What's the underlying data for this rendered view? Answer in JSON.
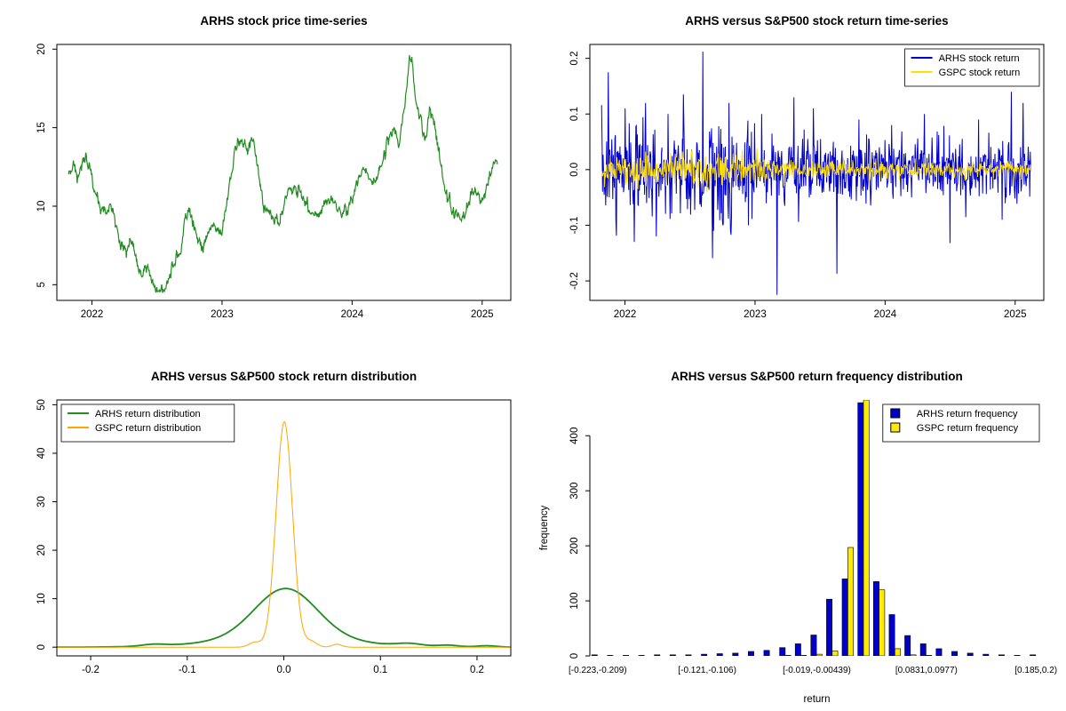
{
  "background": "#ffffff",
  "chart_data": [
    {
      "id": "arhs-price",
      "type": "line",
      "title": "ARHS stock price time-series",
      "xlabel": "",
      "ylabel": "",
      "xlim": [
        2021.73,
        2025.22
      ],
      "ylim": [
        4.0,
        20.3
      ],
      "box": true,
      "grid": false,
      "xtick_values": [
        2022,
        2023,
        2024,
        2025
      ],
      "xtick_labels": [
        "2022",
        "2023",
        "2024",
        "2025"
      ],
      "ytick_values": [
        5,
        10,
        15,
        20
      ],
      "ytick_labels": [
        "5",
        "10",
        "15",
        "20"
      ],
      "series": [
        {
          "name": "ARHS price",
          "kind": "waypoints",
          "color": "#228B22",
          "width": 1.2,
          "seed": 42,
          "noise": 0.18,
          "n": 900,
          "clamp": [
            4.35,
            20.1
          ],
          "points": [
            [
              2021.82,
              12.2
            ],
            [
              2021.86,
              12.8
            ],
            [
              2021.9,
              11.8
            ],
            [
              2021.94,
              13.2
            ],
            [
              2021.98,
              12.6
            ],
            [
              2022.02,
              11.0
            ],
            [
              2022.06,
              10.0
            ],
            [
              2022.1,
              9.6
            ],
            [
              2022.14,
              10.3
            ],
            [
              2022.18,
              9.0
            ],
            [
              2022.22,
              7.6
            ],
            [
              2022.26,
              7.2
            ],
            [
              2022.3,
              7.8
            ],
            [
              2022.34,
              6.4
            ],
            [
              2022.38,
              5.7
            ],
            [
              2022.42,
              6.1
            ],
            [
              2022.46,
              5.2
            ],
            [
              2022.5,
              4.8
            ],
            [
              2022.53,
              4.5
            ],
            [
              2022.56,
              4.7
            ],
            [
              2022.6,
              5.6
            ],
            [
              2022.64,
              6.5
            ],
            [
              2022.68,
              7.2
            ],
            [
              2022.72,
              9.3
            ],
            [
              2022.76,
              9.6
            ],
            [
              2022.8,
              8.3
            ],
            [
              2022.84,
              7.1
            ],
            [
              2022.88,
              7.9
            ],
            [
              2022.92,
              9.0
            ],
            [
              2022.96,
              8.6
            ],
            [
              2023.0,
              8.2
            ],
            [
              2023.04,
              10.5
            ],
            [
              2023.08,
              12.5
            ],
            [
              2023.12,
              14.0
            ],
            [
              2023.16,
              14.3
            ],
            [
              2023.2,
              13.6
            ],
            [
              2023.24,
              14.2
            ],
            [
              2023.28,
              12.0
            ],
            [
              2023.32,
              9.9
            ],
            [
              2023.36,
              9.6
            ],
            [
              2023.4,
              9.2
            ],
            [
              2023.44,
              9.0
            ],
            [
              2023.48,
              10.2
            ],
            [
              2023.52,
              11.0
            ],
            [
              2023.56,
              11.5
            ],
            [
              2023.6,
              11.2
            ],
            [
              2023.64,
              10.4
            ],
            [
              2023.68,
              9.8
            ],
            [
              2023.72,
              9.3
            ],
            [
              2023.76,
              9.6
            ],
            [
              2023.8,
              10.2
            ],
            [
              2023.84,
              10.6
            ],
            [
              2023.88,
              10.0
            ],
            [
              2023.92,
              9.5
            ],
            [
              2023.96,
              9.8
            ],
            [
              2024.0,
              10.6
            ],
            [
              2024.04,
              11.6
            ],
            [
              2024.08,
              12.5
            ],
            [
              2024.12,
              12.0
            ],
            [
              2024.16,
              11.4
            ],
            [
              2024.2,
              12.2
            ],
            [
              2024.24,
              13.2
            ],
            [
              2024.28,
              14.2
            ],
            [
              2024.32,
              15.0
            ],
            [
              2024.36,
              14.0
            ],
            [
              2024.4,
              16.0
            ],
            [
              2024.44,
              19.3
            ],
            [
              2024.46,
              19.6
            ],
            [
              2024.48,
              17.5
            ],
            [
              2024.52,
              15.5
            ],
            [
              2024.56,
              14.2
            ],
            [
              2024.6,
              16.2
            ],
            [
              2024.64,
              15.0
            ],
            [
              2024.68,
              12.5
            ],
            [
              2024.72,
              10.8
            ],
            [
              2024.76,
              10.0
            ],
            [
              2024.8,
              9.5
            ],
            [
              2024.84,
              9.0
            ],
            [
              2024.88,
              10.0
            ],
            [
              2024.92,
              10.8
            ],
            [
              2024.96,
              11.2
            ],
            [
              2025.0,
              10.2
            ],
            [
              2025.04,
              11.5
            ],
            [
              2025.08,
              12.3
            ],
            [
              2025.12,
              12.8
            ]
          ]
        }
      ]
    },
    {
      "id": "returns-timeseries",
      "type": "line",
      "title": "ARHS versus S&P500 stock return time-series",
      "xlabel": "",
      "ylabel": "",
      "xlim": [
        2021.73,
        2025.22
      ],
      "ylim": [
        -0.235,
        0.225
      ],
      "box": true,
      "grid": false,
      "xtick_values": [
        2022,
        2023,
        2024,
        2025
      ],
      "xtick_labels": [
        "2022",
        "2023",
        "2024",
        "2025"
      ],
      "ytick_values": [
        -0.2,
        -0.1,
        0.0,
        0.1,
        0.2
      ],
      "ytick_labels": [
        "-0.2",
        "-0.1",
        "0.0",
        "0.1",
        "0.2"
      ],
      "legend": {
        "position": "topright",
        "sample": "line",
        "entries": [
          {
            "label": "ARHS stock return",
            "color": "#0000CD"
          },
          {
            "label": "GSPC stock return",
            "color": "#FFDF00"
          }
        ]
      },
      "series": [
        {
          "name": "ARHS stock return",
          "kind": "noise",
          "color": "#0000CD",
          "width": 1,
          "seed": 7,
          "n": 840,
          "sigma": 0.028,
          "heavy": 0.05,
          "xrange": [
            2021.82,
            2025.12
          ],
          "vol": [
            [
              2021.7,
              2023.0,
              1.5
            ],
            [
              2023.0,
              2024.0,
              1.0
            ],
            [
              2024.0,
              2025.3,
              0.85
            ]
          ],
          "spikes": [
            [
              2021.87,
              0.175
            ],
            [
              2021.93,
              -0.09
            ],
            [
              2022.0,
              0.11
            ],
            [
              2022.07,
              -0.13
            ],
            [
              2022.16,
              0.12
            ],
            [
              2022.24,
              -0.12
            ],
            [
              2022.33,
              0.1
            ],
            [
              2022.45,
              0.135
            ],
            [
              2022.6,
              0.212
            ],
            [
              2022.68,
              -0.11
            ],
            [
              2022.8,
              0.12
            ],
            [
              2022.95,
              -0.1
            ],
            [
              2023.05,
              0.1
            ],
            [
              2023.17,
              -0.225
            ],
            [
              2023.3,
              0.13
            ],
            [
              2023.45,
              0.11
            ],
            [
              2023.63,
              -0.187
            ],
            [
              2023.8,
              0.09
            ],
            [
              2024.05,
              0.08
            ],
            [
              2024.3,
              0.1
            ],
            [
              2024.5,
              -0.132
            ],
            [
              2024.72,
              0.09
            ],
            [
              2024.9,
              -0.09
            ],
            [
              2024.97,
              0.14
            ],
            [
              2025.06,
              0.12
            ]
          ]
        },
        {
          "name": "GSPC stock return",
          "kind": "noise",
          "color": "#FFDF00",
          "width": 0.9,
          "seed": 11,
          "n": 840,
          "sigma": 0.0095,
          "heavy": 0,
          "xrange": [
            2021.82,
            2025.12
          ],
          "vol": [
            [
              2021.7,
              2023.1,
              1.5
            ],
            [
              2023.1,
              2025.3,
              0.75
            ]
          ],
          "spikes": [
            [
              2022.1,
              -0.035
            ],
            [
              2022.35,
              0.03
            ],
            [
              2022.6,
              -0.04
            ],
            [
              2022.9,
              0.035
            ]
          ]
        }
      ]
    },
    {
      "id": "returns-distribution",
      "type": "line",
      "title": "ARHS versus S&P500 stock return distribution",
      "xlabel": "",
      "ylabel": "",
      "xlim": [
        -0.235,
        0.235
      ],
      "ylim": [
        -1.8,
        51
      ],
      "box": true,
      "grid": false,
      "xtick_values": [
        -0.2,
        -0.1,
        0.0,
        0.1,
        0.2
      ],
      "xtick_labels": [
        "-0.2",
        "-0.1",
        "0.0",
        "0.1",
        "0.2"
      ],
      "ytick_values": [
        0,
        10,
        20,
        30,
        40,
        50
      ],
      "ytick_labels": [
        "0",
        "10",
        "20",
        "30",
        "40",
        "50"
      ],
      "legend": {
        "position": "topleft",
        "sample": "line",
        "entries": [
          {
            "label": "ARHS return distribution",
            "color": "#228B22"
          },
          {
            "label": "GSPC return distribution",
            "color": "#FFA500"
          }
        ]
      },
      "series": [
        {
          "name": "ARHS return distribution",
          "kind": "density",
          "color": "#228B22",
          "width": 1.8,
          "peak": 12,
          "gaussians": [
            {
              "mu": 0.002,
              "sigma": 0.032,
              "amp": 10.3
            },
            {
              "mu": 0.0,
              "sigma": 0.07,
              "amp": 1.8
            },
            {
              "mu": -0.135,
              "sigma": 0.012,
              "amp": 0.35
            },
            {
              "mu": 0.13,
              "sigma": 0.013,
              "amp": 0.5
            },
            {
              "mu": 0.17,
              "sigma": 0.011,
              "amp": 0.33
            },
            {
              "mu": 0.21,
              "sigma": 0.01,
              "amp": 0.28
            }
          ]
        },
        {
          "name": "GSPC return distribution",
          "kind": "density",
          "color": "#FFA500",
          "width": 1,
          "peak": 47,
          "gaussians": [
            {
              "mu": 0.0005,
              "sigma": 0.0085,
              "amp": 46.5
            },
            {
              "mu": -0.03,
              "sigma": 0.006,
              "amp": 1.0
            },
            {
              "mu": 0.028,
              "sigma": 0.006,
              "amp": 1.2
            },
            {
              "mu": 0.055,
              "sigma": 0.005,
              "amp": 0.6
            }
          ]
        }
      ]
    },
    {
      "id": "returns-frequency",
      "type": "bar",
      "title": "ARHS versus S&P500 return frequency distribution",
      "xlabel": "return",
      "ylabel": "frequency",
      "bin_count": 29,
      "bin_range": [
        -0.223,
        0.2
      ],
      "xlim": [
        0,
        29
      ],
      "ylim": [
        0,
        465
      ],
      "box": false,
      "grid": false,
      "xtick_values": [
        0,
        7,
        14,
        21,
        28
      ],
      "xtick_labels": [
        "[-0.223,-0.209)",
        "[-0.121,-0.106)",
        "[-0.019,-0.00439)",
        "[0.0831,0.0977)",
        "[0.185,0.2)"
      ],
      "xtick_fontsize": 10,
      "ytick_values": [
        0,
        100,
        200,
        300,
        400
      ],
      "ytick_labels": [
        "0",
        "100",
        "200",
        "300",
        "400"
      ],
      "legend": {
        "position": "topright",
        "sample": "box",
        "entries": [
          {
            "label": "ARHS return frequency",
            "color": "#0000CD"
          },
          {
            "label": "GSPC return frequency",
            "color": "#FFEB00"
          }
        ]
      },
      "series": [
        {
          "name": "ARHS return frequency",
          "color": "#0000CD",
          "values": [
            2,
            1,
            1,
            1,
            2,
            2,
            2,
            3,
            4,
            5,
            8,
            10,
            15,
            22,
            38,
            103,
            140,
            460,
            135,
            75,
            37,
            22,
            13,
            8,
            5,
            3,
            2,
            1,
            2
          ]
        },
        {
          "name": "GSPC return frequency",
          "color": "#FFEB00",
          "values": [
            0,
            0,
            0,
            0,
            0,
            0,
            0,
            0,
            0,
            0,
            0,
            0,
            1,
            1,
            3,
            9,
            197,
            500,
            120,
            13,
            2,
            1,
            0,
            0,
            0,
            0,
            0,
            0,
            0
          ]
        }
      ]
    }
  ]
}
